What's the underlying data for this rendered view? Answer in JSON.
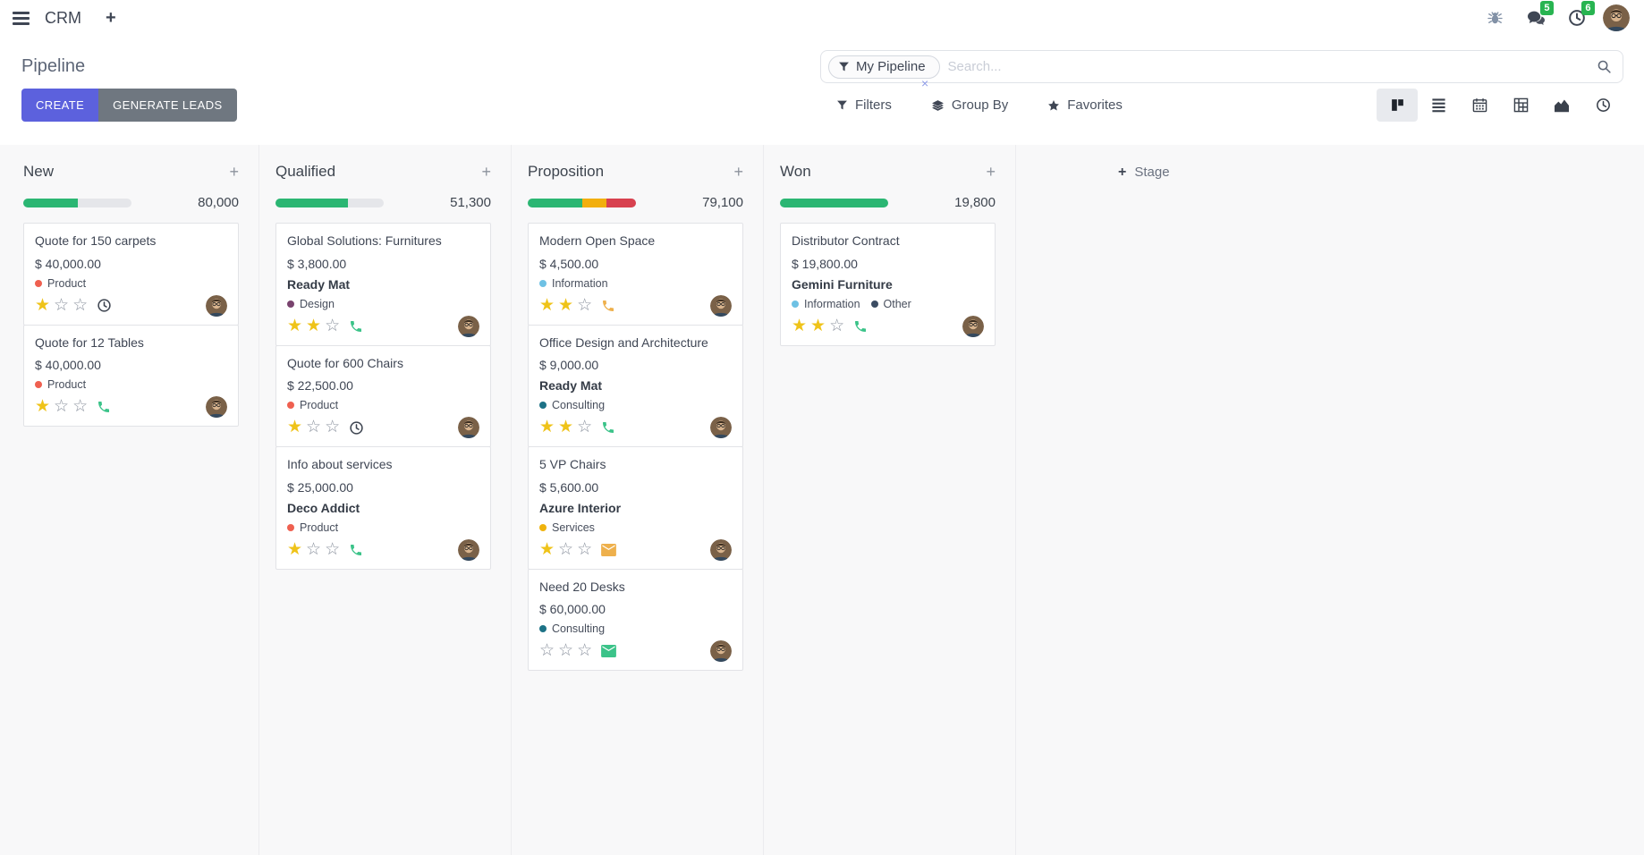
{
  "icons": {
    "plus": "+",
    "close": "×",
    "star_filled": "★",
    "star_empty": "☆"
  },
  "colors": {
    "primary": "#5c61dd",
    "secondary": "#6f7780",
    "badge_green": "#28b451",
    "progress_green": "#2bb673",
    "progress_yellow": "#f2af0d",
    "progress_red": "#d8414f",
    "progress_track": "#e5e6ea"
  },
  "navbar": {
    "app_name": "CRM",
    "messages_badge": "5",
    "activities_badge": "6"
  },
  "control_panel": {
    "title": "Pipeline",
    "create_label": "CREATE",
    "generate_leads_label": "GENERATE LEADS",
    "search_facet": "My Pipeline",
    "search_placeholder": "Search...",
    "menus": [
      {
        "label": "Filters"
      },
      {
        "label": "Group By"
      },
      {
        "label": "Favorites"
      }
    ]
  },
  "board": {
    "add_stage_label": "Stage",
    "columns": [
      {
        "name": "New",
        "counter": "80,000",
        "progress": [
          {
            "color": "#2bb673",
            "pct": 50
          }
        ],
        "cards": [
          {
            "title": "Quote for 150 carpets",
            "amount": "$ 40,000.00",
            "partner": "",
            "tags": [
              {
                "label": "Product",
                "color": "#ef6050"
              }
            ],
            "stars": 1,
            "activity": {
              "icon": "clock",
              "color": "#3d4450"
            }
          },
          {
            "title": "Quote for 12 Tables",
            "amount": "$ 40,000.00",
            "partner": "",
            "tags": [
              {
                "label": "Product",
                "color": "#ef6050"
              }
            ],
            "stars": 1,
            "activity": {
              "icon": "phone",
              "color": "#3bc389"
            }
          }
        ]
      },
      {
        "name": "Qualified",
        "counter": "51,300",
        "progress": [
          {
            "color": "#2bb673",
            "pct": 67
          }
        ],
        "cards": [
          {
            "title": "Global Solutions: Furnitures",
            "amount": "$ 3,800.00",
            "partner": "Ready Mat",
            "tags": [
              {
                "label": "Design",
                "color": "#79436e"
              }
            ],
            "stars": 2,
            "activity": {
              "icon": "phone",
              "color": "#3bc389"
            }
          },
          {
            "title": "Quote for 600 Chairs",
            "amount": "$ 22,500.00",
            "partner": "",
            "tags": [
              {
                "label": "Product",
                "color": "#ef6050"
              }
            ],
            "stars": 1,
            "activity": {
              "icon": "clock",
              "color": "#3d4450"
            }
          },
          {
            "title": "Info about services",
            "amount": "$ 25,000.00",
            "partner": "Deco Addict",
            "tags": [
              {
                "label": "Product",
                "color": "#ef6050"
              }
            ],
            "stars": 1,
            "activity": {
              "icon": "phone",
              "color": "#3bc389"
            }
          }
        ]
      },
      {
        "name": "Proposition",
        "counter": "79,100",
        "progress": [
          {
            "color": "#2bb673",
            "pct": 50
          },
          {
            "color": "#f2af0d",
            "pct": 23
          },
          {
            "color": "#d8414f",
            "pct": 27
          }
        ],
        "cards": [
          {
            "title": "Modern Open Space",
            "amount": "$ 4,500.00",
            "partner": "",
            "tags": [
              {
                "label": "Information",
                "color": "#6ec1e4"
              }
            ],
            "stars": 2,
            "activity": {
              "icon": "phone",
              "color": "#eeb04c"
            }
          },
          {
            "title": "Office Design and Architecture",
            "amount": "$ 9,000.00",
            "partner": "Ready Mat",
            "tags": [
              {
                "label": "Consulting",
                "color": "#1d7286"
              }
            ],
            "stars": 2,
            "activity": {
              "icon": "phone",
              "color": "#3bc389"
            }
          },
          {
            "title": "5 VP Chairs",
            "amount": "$ 5,600.00",
            "partner": "Azure Interior",
            "tags": [
              {
                "label": "Services",
                "color": "#efb30d"
              }
            ],
            "stars": 1,
            "activity": {
              "icon": "envelope",
              "color": "#eeb04c"
            }
          },
          {
            "title": "Need 20 Desks",
            "amount": "$ 60,000.00",
            "partner": "",
            "tags": [
              {
                "label": "Consulting",
                "color": "#1d7286"
              }
            ],
            "stars": 0,
            "activity": {
              "icon": "envelope",
              "color": "#3bc389"
            }
          }
        ]
      },
      {
        "name": "Won",
        "counter": "19,800",
        "progress": [
          {
            "color": "#2bb673",
            "pct": 100
          }
        ],
        "cards": [
          {
            "title": "Distributor Contract",
            "amount": "$ 19,800.00",
            "partner": "Gemini Furniture",
            "tags": [
              {
                "label": "Information",
                "color": "#6ec1e4"
              },
              {
                "label": "Other",
                "color": "#3b4c63"
              }
            ],
            "stars": 2,
            "activity": {
              "icon": "phone",
              "color": "#3bc389"
            }
          }
        ]
      }
    ]
  }
}
